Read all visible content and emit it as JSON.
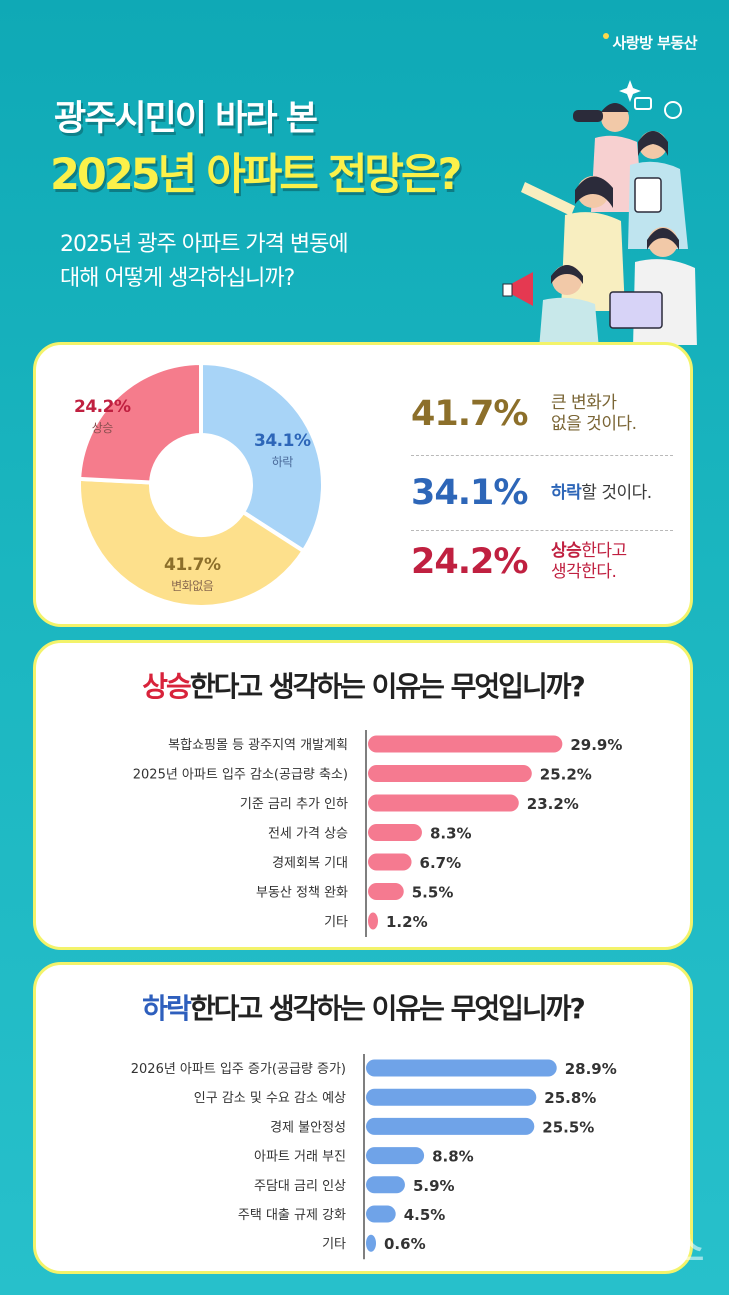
{
  "brand": "사랑방 부동산",
  "title_line1": "광주시민이 바라 본",
  "title_line2": "2025년 아파트 전망은?",
  "question_line1": "2025년 광주 아파트 가격 변동에",
  "question_line2": "대해 어떻게 생각하십니까?",
  "colors": {
    "up": "#f57c8c",
    "down": "#a8d4f7",
    "same": "#fde08c",
    "up_text": "#c02040",
    "down_text": "#2d66b8",
    "same_text": "#8c6f2a",
    "bar_up": "#f57a90",
    "bar_down": "#6fa3e8"
  },
  "donut": {
    "slices": [
      {
        "key": "down",
        "pct_label": "34.1%",
        "name": "하락",
        "value": 34.1
      },
      {
        "key": "same",
        "pct_label": "41.7%",
        "name": "변화없음",
        "value": 41.7
      },
      {
        "key": "up",
        "pct_label": "24.2%",
        "name": "상승",
        "value": 24.2
      }
    ]
  },
  "stats": [
    {
      "pct": "41.7%",
      "desc_bold": "",
      "desc_line1": "큰 변화가",
      "desc_line2": "없을 것이다."
    },
    {
      "pct": "34.1%",
      "desc_bold": "하락",
      "desc_line1": "할 것이다.",
      "desc_line2": ""
    },
    {
      "pct": "24.2%",
      "desc_bold": "상승",
      "desc_line1": "한다고",
      "desc_line2": "생각한다."
    }
  ],
  "rise": {
    "title_hl": "상승",
    "title_rest": "한다고 생각하는 이유는 무엇입니까?",
    "chart_data": {
      "type": "bar",
      "categories": [
        "복합쇼핑몰 등 광주지역 개발계획",
        "2025년 아파트 입주 감소(공급량 축소)",
        "기준 금리 추가 인하",
        "전세 가격 상승",
        "경제회복 기대",
        "부동산 정책 완화",
        "기타"
      ],
      "values": [
        29.9,
        25.2,
        23.2,
        8.3,
        6.7,
        5.5,
        1.2
      ],
      "value_labels": [
        "29.9%",
        "25.2%",
        "23.2%",
        "8.3%",
        "6.7%",
        "5.5%",
        "1.2%"
      ]
    }
  },
  "fall": {
    "title_hl": "하락",
    "title_rest": "한다고 생각하는 이유는 무엇입니까?",
    "chart_data": {
      "type": "bar",
      "categories": [
        "2026년 아파트 입주 증가(공급량 증가)",
        "인구 감소 및 수요 감소 예상",
        "경제 불안정성",
        "아파트 거래 부진",
        "주담대 금리 인상",
        "주택 대출 규제 강화",
        "기타"
      ],
      "values": [
        28.9,
        25.8,
        25.5,
        8.8,
        5.9,
        4.5,
        0.6
      ],
      "value_labels": [
        "28.9%",
        "25.8%",
        "25.5%",
        "8.8%",
        "5.9%",
        "4.5%",
        "0.6%"
      ]
    }
  },
  "watermark": "뉴시스"
}
